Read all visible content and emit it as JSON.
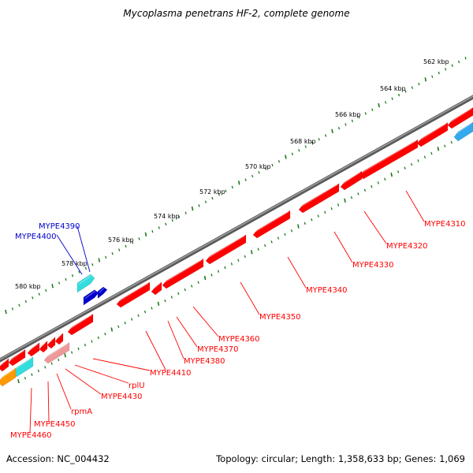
{
  "title": "Mycoplasma penetrans HF-2, complete genome",
  "accession": "Accession: NC_004432",
  "summary": "Topology: circular; Length: 1,358,633 bp; Genes: 1,069",
  "tick_labels": [
    "562 kbp",
    "564 kbp",
    "566 kbp",
    "568 kbp",
    "570 kbp",
    "572 kbp",
    "574 kbp",
    "576 kbp",
    "578 kbp",
    "580 kbp"
  ],
  "features": [
    {
      "name": "MYPE4310",
      "strand": "reverse",
      "color": "#ff0000"
    },
    {
      "name": "MYPE4320",
      "strand": "reverse",
      "color": "#ff0000"
    },
    {
      "name": "MYPE4330",
      "strand": "reverse",
      "color": "#ff0000"
    },
    {
      "name": "MYPE4340",
      "strand": "reverse",
      "color": "#ff0000"
    },
    {
      "name": "MYPE4350",
      "strand": "reverse",
      "color": "#ff0000"
    },
    {
      "name": "MYPE4360",
      "strand": "reverse",
      "color": "#ff0000"
    },
    {
      "name": "MYPE4370",
      "strand": "reverse",
      "color": "#ff0000"
    },
    {
      "name": "MYPE4380",
      "strand": "reverse",
      "color": "#ff0000"
    },
    {
      "name": "MYPE4390",
      "strand": "forward",
      "color": "#0000cc"
    },
    {
      "name": "MYPE4400",
      "strand": "forward",
      "color": "#0000cc"
    },
    {
      "name": "MYPE4410",
      "strand": "reverse",
      "color": "#ff0000"
    },
    {
      "name": "rplU",
      "strand": "reverse",
      "color": "#ff0000"
    },
    {
      "name": "MYPE4430",
      "strand": "reverse",
      "color": "#ff0000"
    },
    {
      "name": "rpmA",
      "strand": "reverse",
      "color": "#ff0000"
    },
    {
      "name": "MYPE4450",
      "strand": "reverse",
      "color": "#ff0000"
    },
    {
      "name": "MYPE4460",
      "strand": "reverse",
      "color": "#ff0000"
    }
  ],
  "colors": {
    "backbone": "#808080",
    "ticks": "#1a7a1a",
    "reverse_cds": "#ff0000",
    "forward_cds": "#0000cc",
    "rna_cyan": "#33dddd",
    "light_blue": "#33aaee",
    "orange": "#ff9900",
    "pink": "#ee9999"
  }
}
